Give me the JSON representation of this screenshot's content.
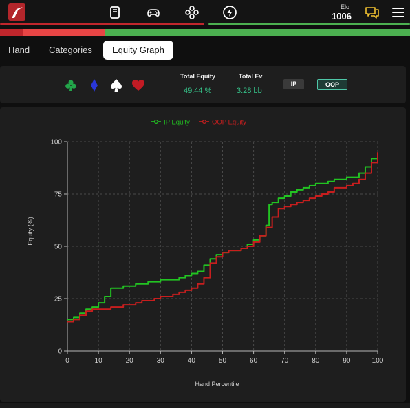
{
  "header": {
    "elo_label": "Elo",
    "elo_value": "1006",
    "nav_icons": [
      "book-icon",
      "gamepad-icon",
      "dpad-icon",
      "lightning-icon"
    ]
  },
  "equity_bar": {
    "segments": [
      {
        "share": 0.055,
        "color": "#c0262c"
      },
      {
        "share": 0.2,
        "color": "#e84545"
      },
      {
        "share": 0.745,
        "color": "#4cb050"
      }
    ]
  },
  "tabs": [
    {
      "label": "Hand",
      "active": false
    },
    {
      "label": "Categories",
      "active": false
    },
    {
      "label": "Equity Graph",
      "active": true
    }
  ],
  "stats": {
    "suits": [
      {
        "name": "club",
        "color": "#23a54a"
      },
      {
        "name": "diamond",
        "color": "#2a37d8"
      },
      {
        "name": "spade",
        "color": "#ffffff"
      },
      {
        "name": "heart",
        "color": "#c21b24"
      }
    ],
    "total_equity_label": "Total Equity",
    "total_equity_value": "49.44 %",
    "total_ev_label": "Total Ev",
    "total_ev_value": "3.28 bb",
    "ip_label": "IP",
    "oop_label": "OOP"
  },
  "chart_data": {
    "type": "line",
    "xlabel": "Hand Percentile",
    "ylabel": "Equity (%)",
    "xlim": [
      0,
      100
    ],
    "ylim": [
      0,
      100
    ],
    "xticks": [
      0,
      10,
      20,
      30,
      40,
      50,
      60,
      70,
      80,
      90,
      100
    ],
    "yticks": [
      0,
      25,
      50,
      75,
      100
    ],
    "grid": true,
    "legend_position": "top",
    "series": [
      {
        "name": "IP Equity",
        "color": "#22c322",
        "x": [
          0,
          2,
          4,
          6,
          8,
          10,
          12,
          14,
          16,
          18,
          20,
          22,
          24,
          26,
          28,
          30,
          32,
          34,
          36,
          38,
          40,
          42,
          44,
          46,
          48,
          50,
          52,
          54,
          56,
          58,
          60,
          62,
          64,
          65,
          66,
          68,
          70,
          72,
          74,
          76,
          78,
          80,
          82,
          84,
          86,
          88,
          90,
          92,
          94,
          96,
          98,
          100
        ],
        "y": [
          15,
          16,
          18,
          20,
          21,
          23,
          26,
          30,
          30,
          31,
          31,
          32,
          32,
          33,
          33,
          34,
          34,
          34,
          35,
          36,
          37,
          38,
          41,
          44,
          46,
          47,
          48,
          48,
          49,
          51,
          53,
          55,
          60,
          70,
          71,
          73,
          74,
          76,
          77,
          78,
          79,
          80,
          80,
          81,
          82,
          82,
          83,
          83,
          85,
          88,
          92,
          93
        ]
      },
      {
        "name": "OOP Equity",
        "color": "#c81e1e",
        "x": [
          0,
          2,
          4,
          6,
          8,
          10,
          12,
          14,
          16,
          18,
          20,
          22,
          24,
          26,
          28,
          30,
          32,
          34,
          36,
          38,
          40,
          42,
          44,
          46,
          48,
          50,
          52,
          54,
          56,
          58,
          60,
          62,
          64,
          66,
          68,
          70,
          72,
          74,
          76,
          78,
          80,
          82,
          84,
          86,
          88,
          90,
          92,
          94,
          96,
          98,
          100
        ],
        "y": [
          14,
          15,
          17,
          19,
          20,
          20,
          20,
          21,
          21,
          22,
          22,
          23,
          24,
          24,
          25,
          26,
          26,
          27,
          28,
          29,
          30,
          32,
          35,
          42,
          45,
          47,
          48,
          48,
          49,
          50,
          52,
          55,
          59,
          64,
          68,
          69,
          70,
          71,
          72,
          73,
          74,
          75,
          76,
          78,
          78,
          79,
          80,
          82,
          85,
          90,
          95
        ]
      }
    ]
  }
}
